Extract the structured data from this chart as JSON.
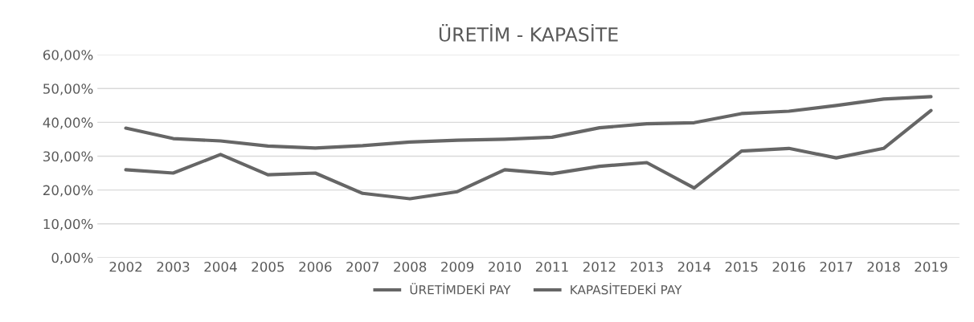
{
  "chart_data": {
    "type": "line",
    "title": "ÜRETİM - KAPASİTE",
    "categories": [
      "2002",
      "2003",
      "2004",
      "2005",
      "2006",
      "2007",
      "2008",
      "2009",
      "2010",
      "2011",
      "2012",
      "2013",
      "2014",
      "2015",
      "2016",
      "2017",
      "2018",
      "2019"
    ],
    "series": [
      {
        "name": "ÜRETİMDEKİ PAY",
        "color": "#666666",
        "values": [
          26.0,
          25.0,
          30.5,
          24.5,
          25.0,
          19.0,
          17.4,
          19.5,
          26.0,
          24.8,
          27.0,
          28.1,
          20.6,
          31.5,
          32.3,
          29.5,
          32.3,
          43.5
        ]
      },
      {
        "name": "KAPASİTEDEKİ PAY",
        "color": "#666666",
        "values": [
          38.3,
          35.2,
          34.5,
          33.0,
          32.4,
          33.1,
          34.2,
          34.7,
          35.0,
          35.6,
          38.4,
          39.6,
          39.9,
          42.6,
          43.3,
          45.0,
          46.9,
          47.6
        ]
      }
    ],
    "ylim": [
      0,
      60
    ],
    "yticks": [
      {
        "value": 0,
        "label": "0,00%"
      },
      {
        "value": 10,
        "label": "10,00%"
      },
      {
        "value": 20,
        "label": "20,00%"
      },
      {
        "value": 30,
        "label": "30,00%"
      },
      {
        "value": 40,
        "label": "40,00%"
      },
      {
        "value": 50,
        "label": "50,00%"
      },
      {
        "value": 60,
        "label": "60,00%"
      }
    ],
    "grid": "y",
    "legend": "bottom",
    "marker": "none",
    "line_style": "solid"
  }
}
